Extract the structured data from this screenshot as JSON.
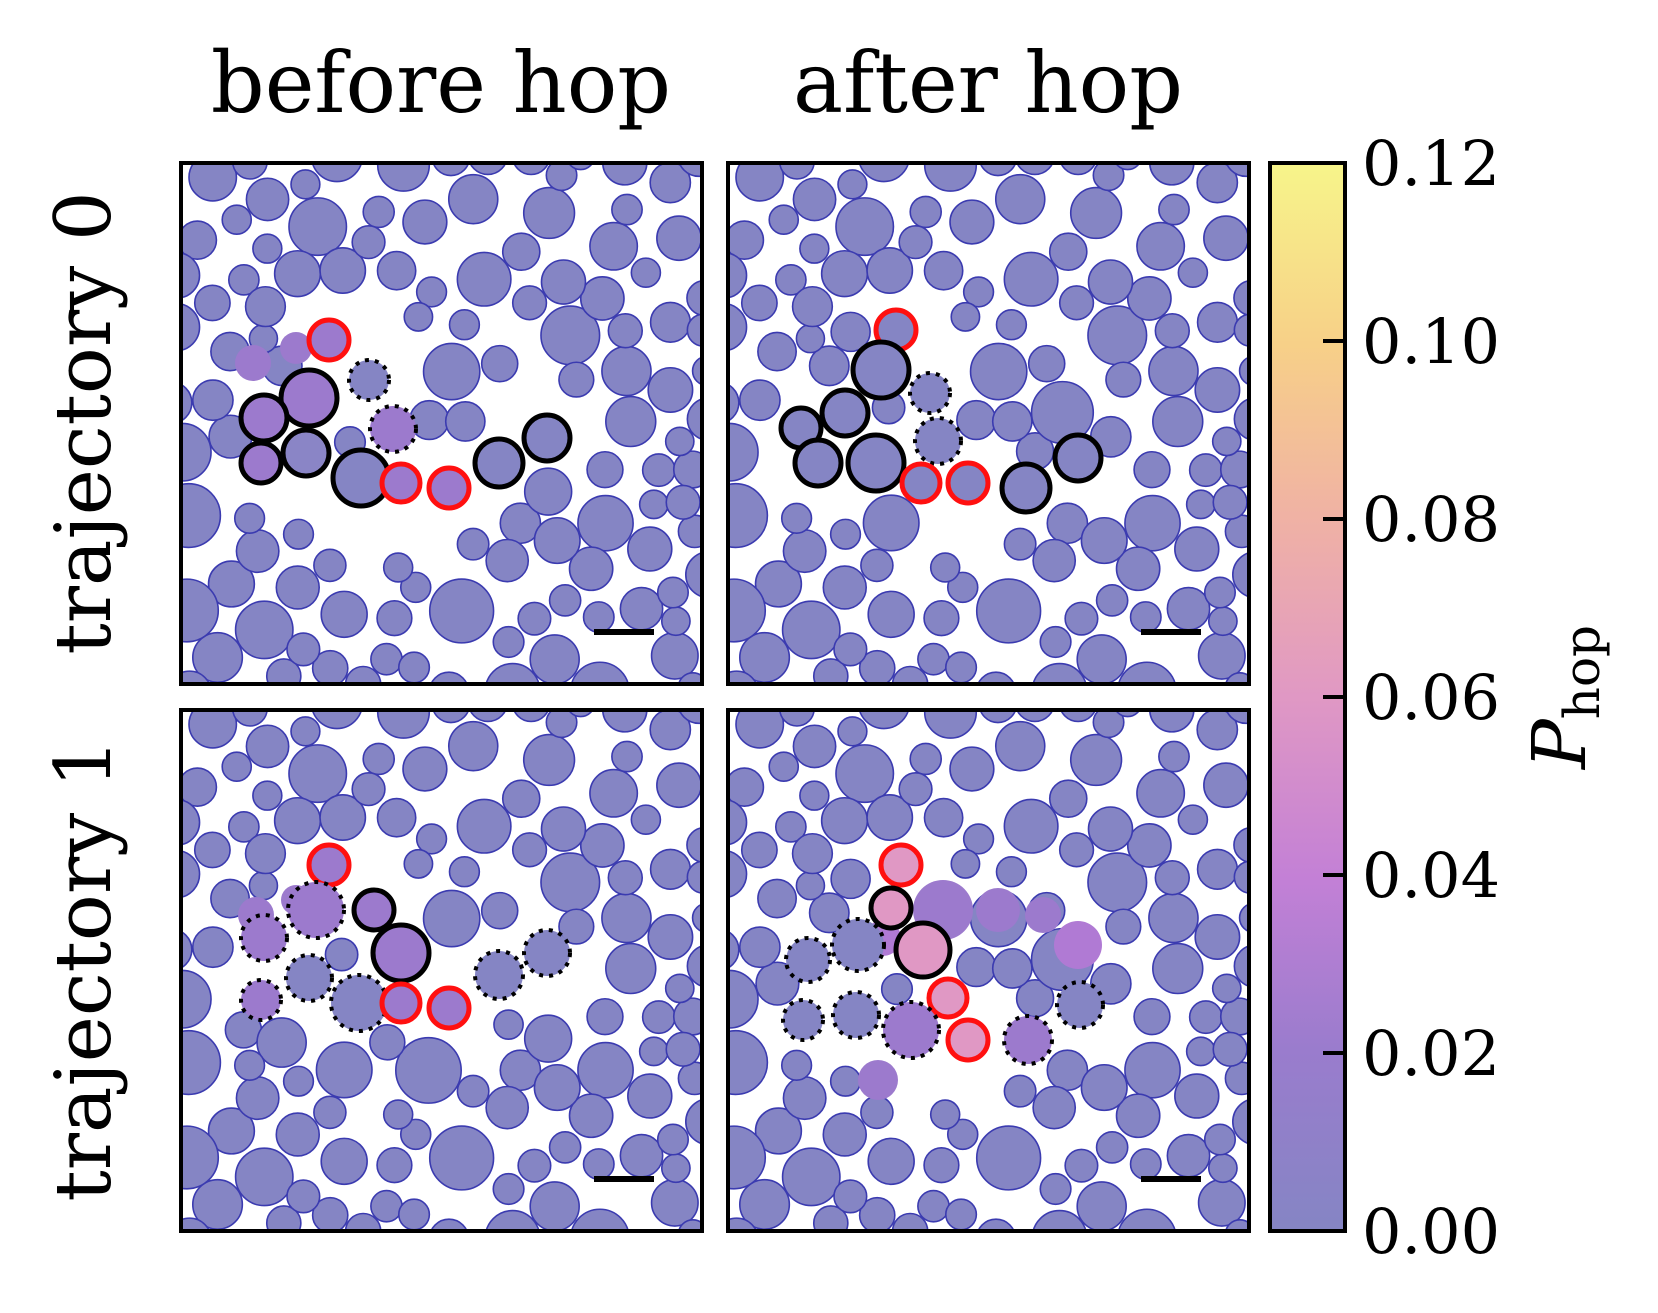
{
  "figure": {
    "columns": [
      "before hop",
      "after hop"
    ],
    "rows": [
      "trajectory 0",
      "trajectory 1"
    ]
  },
  "colorbar": {
    "label_main": "P",
    "label_sub": "hop",
    "min": 0.0,
    "max": 0.12,
    "ticks": [
      "0.00",
      "0.02",
      "0.04",
      "0.06",
      "0.08",
      "0.10",
      "0.12"
    ],
    "colormap_stops": [
      "#8585c4",
      "#9a7ccd",
      "#c380d6",
      "#e098c4",
      "#f0b2a4",
      "#f7d088",
      "#f7f58a"
    ]
  },
  "colors": {
    "particle_fill": "#8585c4",
    "particle_edge": "#3b3bb0",
    "highlight_red": "#ff1010",
    "highlight_black": "#000000"
  }
}
